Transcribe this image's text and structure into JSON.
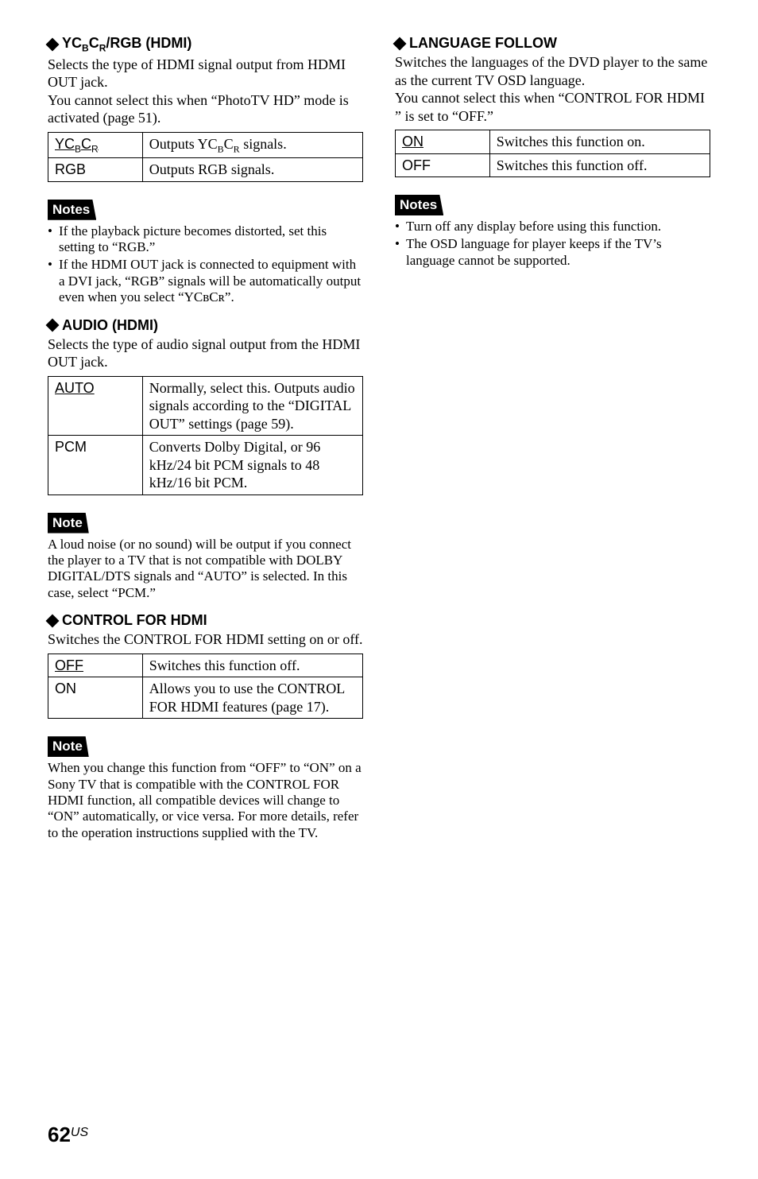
{
  "left": {
    "h1": {
      "prefix": "YC",
      "sub1": "B",
      "mid": "C",
      "sub2": "R",
      "suffix": "/RGB (HDMI)"
    },
    "h1_body": "Selects the type of HDMI signal output from HDMI OUT jack.\nYou cannot select this when “PhotoTV HD” mode is activated (page 51).",
    "table1": {
      "r1c1": {
        "pre": "YC",
        "s1": "B",
        "mid": "C",
        "s2": "R"
      },
      "r1c2": {
        "pre": "Outputs YC",
        "s1": "B",
        "mid": "C",
        "s2": "R",
        "post": " signals."
      },
      "r2c1": "RGB",
      "r2c2": "Outputs RGB signals."
    },
    "notes1_label": "Notes",
    "notes1": [
      "If the playback picture becomes distorted, set this setting to “RGB.”",
      "If the HDMI OUT jack is connected to equipment with a DVI jack, “RGB” signals will be automatically output even when you select “YCʙCʀ”."
    ],
    "h2": "AUDIO (HDMI)",
    "h2_body": "Selects the type of audio signal output from the HDMI OUT jack.",
    "table2": {
      "r1c1": "AUTO",
      "r1c2": "Normally, select this. Outputs audio signals according to the “DIGITAL OUT” settings (page 59).",
      "r2c1": "PCM",
      "r2c2": "Converts Dolby Digital, or 96 kHz/24 bit PCM signals to 48 kHz/16 bit PCM."
    },
    "note2_label": "Note",
    "note2_body": "A loud noise (or no sound) will be output if you connect the player to a TV that is not compatible with DOLBY DIGITAL/DTS signals and “AUTO” is selected. In this case, select “PCM.”",
    "h3": "CONTROL FOR HDMI",
    "h3_body": "Switches the CONTROL FOR HDMI setting on or off.",
    "table3": {
      "r1c1": "OFF",
      "r1c2": "Switches this function off.",
      "r2c1": "ON",
      "r2c2": "Allows you to use the CONTROL FOR HDMI features (page 17)."
    },
    "note3_label": "Note",
    "note3_body": "When you change this function from “OFF” to “ON” on a Sony TV that is compatible with the CONTROL FOR HDMI function, all compatible devices will change to “ON” automatically, or vice versa. For more details, refer to the operation instructions supplied with the TV."
  },
  "right": {
    "h1": "LANGUAGE FOLLOW",
    "h1_body": "Switches the languages of the DVD player to the same as the current TV OSD language.\nYou cannot select this when “CONTROL FOR HDMI ” is set to “OFF.”",
    "table1": {
      "r1c1": "ON",
      "r1c2": "Switches this function on.",
      "r2c1": "OFF",
      "r2c2": "Switches this function off."
    },
    "notes1_label": "Notes",
    "notes1": [
      "Turn off any display before using this function.",
      "The OSD language for player keeps if the TV’s language cannot be supported."
    ]
  },
  "footer": {
    "page": "62",
    "locale": "US"
  }
}
